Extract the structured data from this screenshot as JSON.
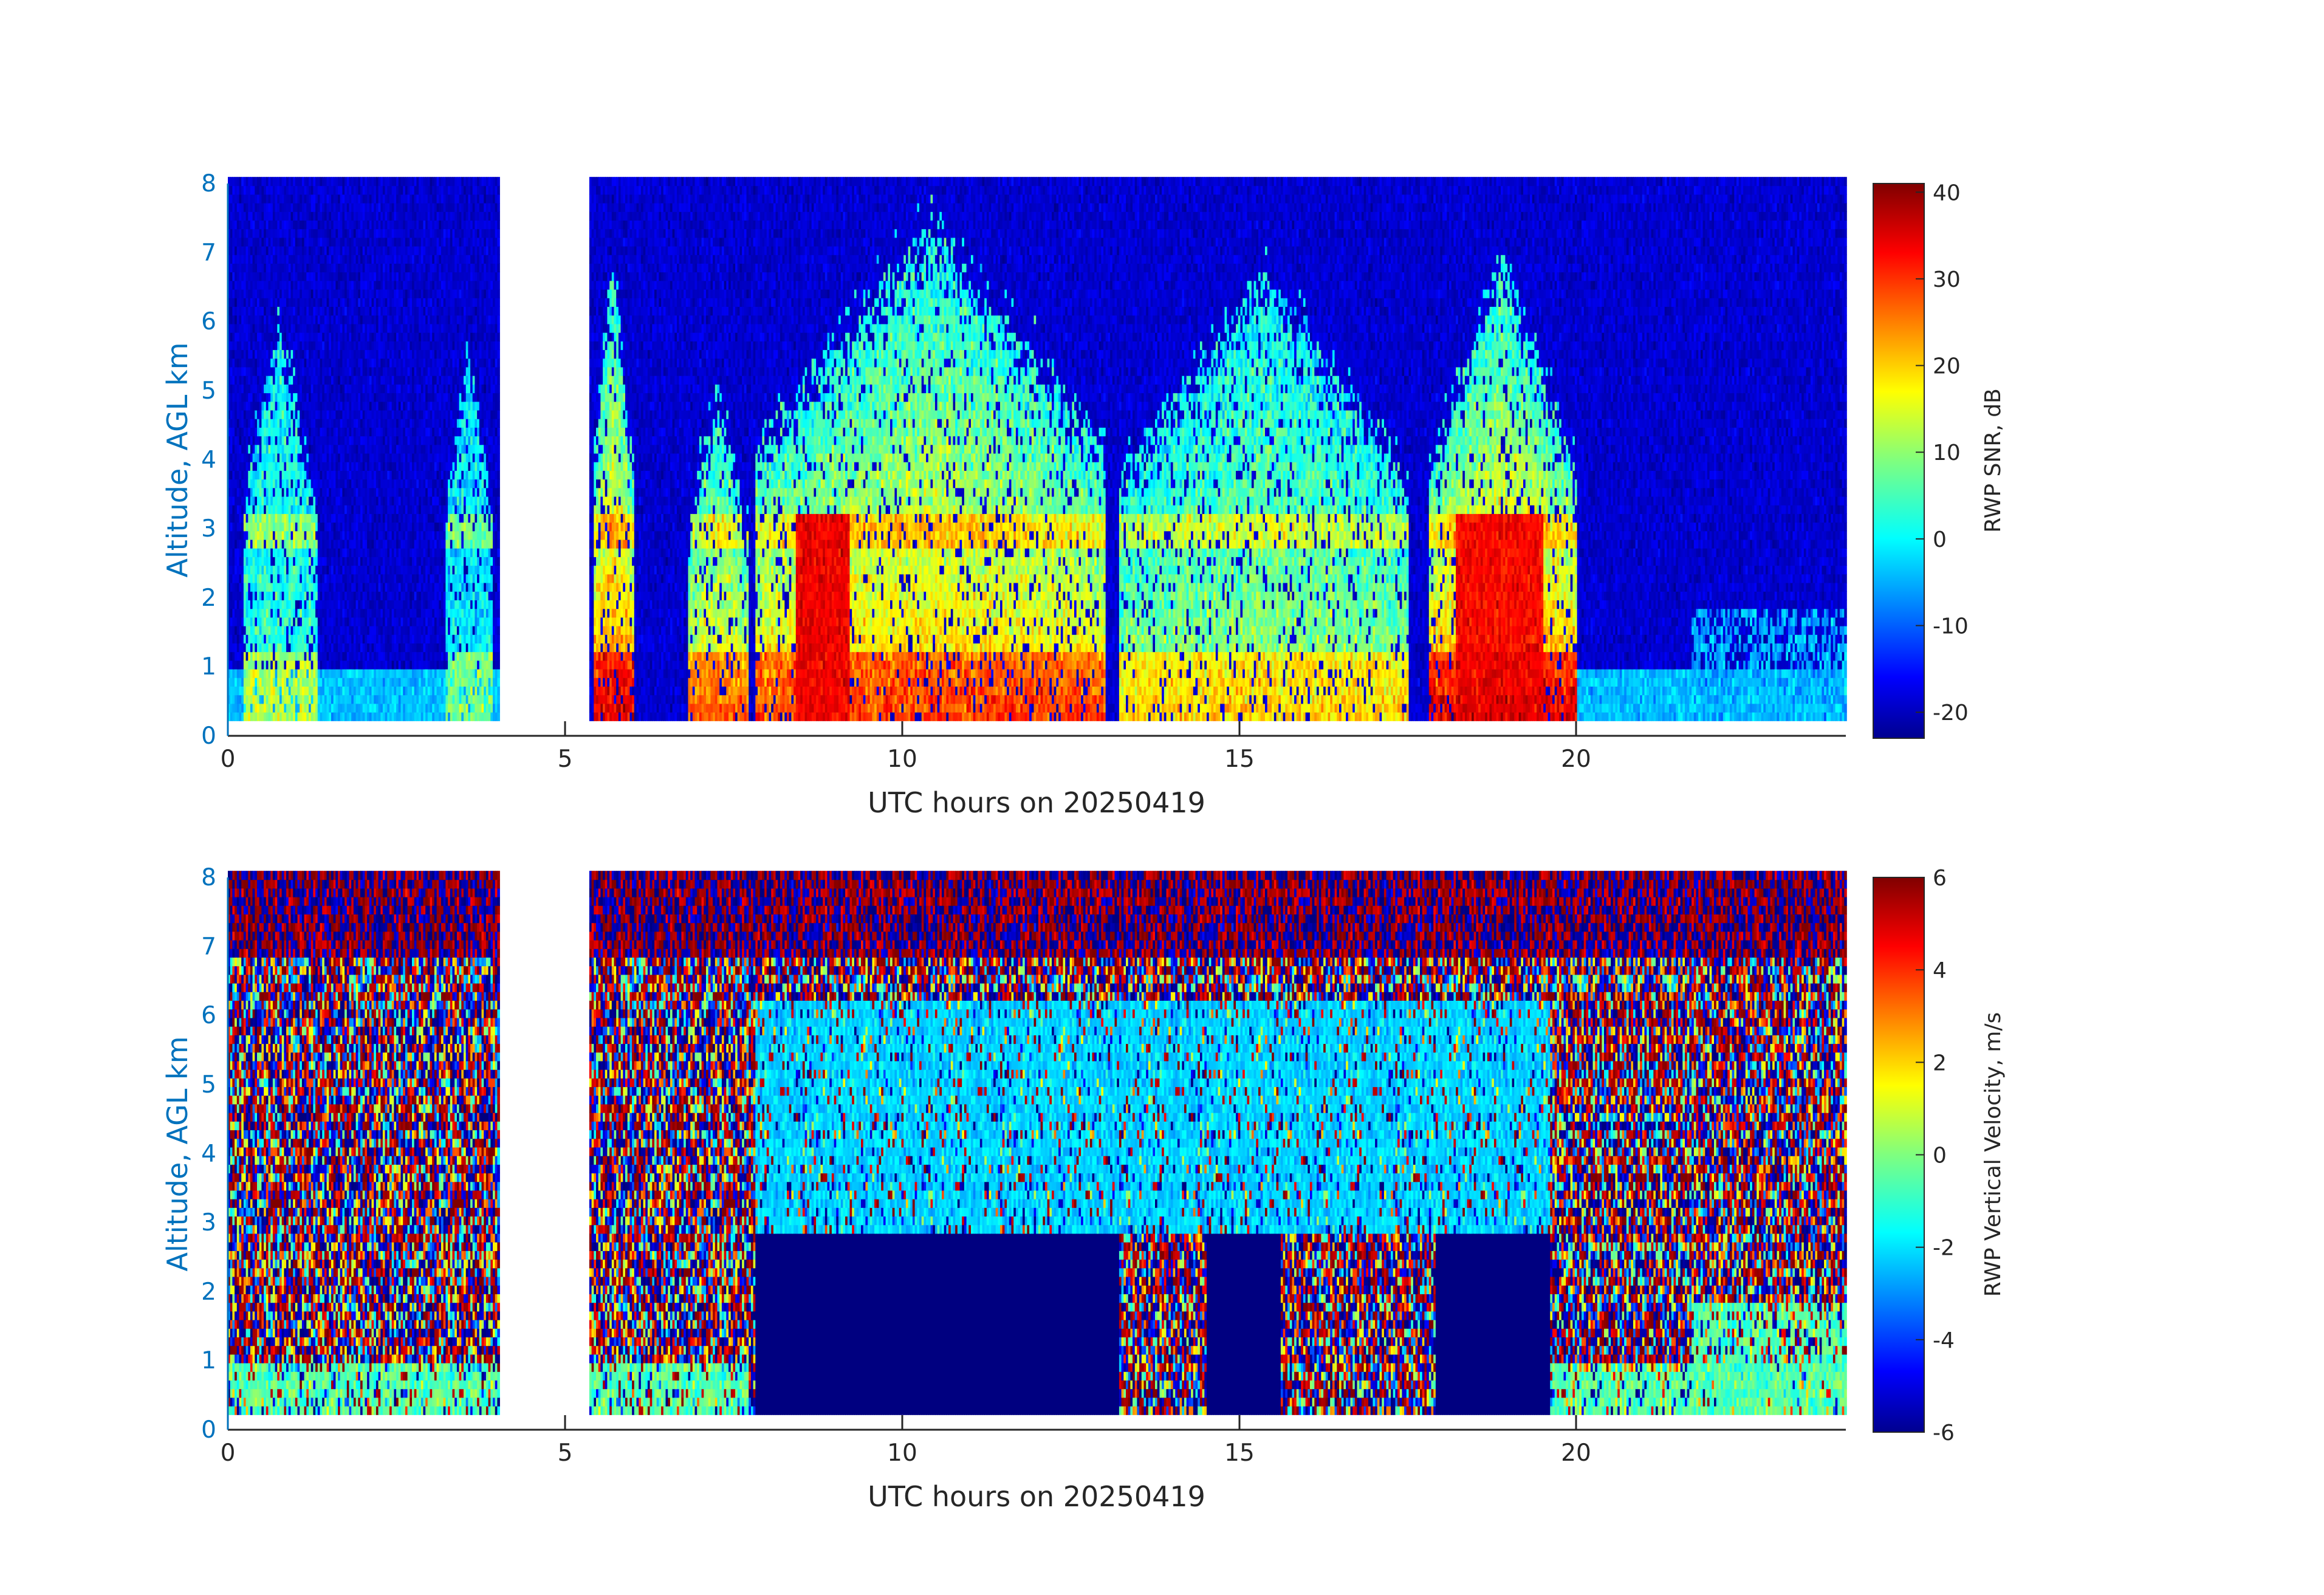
{
  "chart_data": [
    {
      "type": "heatmap",
      "title": "",
      "xlabel": "UTC hours on 20250419",
      "ylabel": "Altitude, AGL km",
      "xlim": [
        0,
        24
      ],
      "ylim": [
        0,
        8
      ],
      "x_ticks": [
        "0",
        "5",
        "10",
        "15",
        "20"
      ],
      "y_ticks": [
        "0",
        "1",
        "2",
        "3",
        "4",
        "5",
        "6",
        "7",
        "8"
      ],
      "data_gap_hours": [
        4.0,
        5.33
      ],
      "data_min_altitude_km": 0.22,
      "colormap": "jet",
      "colorbar": {
        "label": "RWP SNR, dB",
        "range": [
          -23,
          41
        ],
        "ticks": [
          "-20",
          "-10",
          "0",
          "10",
          "20",
          "30",
          "40"
        ]
      },
      "features": [
        {
          "x": [
            0.2,
            1.3
          ],
          "top_km": 5.8,
          "peak": "cyan-yellow"
        },
        {
          "x": [
            3.2,
            3.9
          ],
          "top_km": 5.5,
          "peak": "cyan"
        },
        {
          "x": [
            5.4,
            6.0
          ],
          "top_km": 6.8,
          "peak": "red"
        },
        {
          "x": [
            6.8,
            7.7
          ],
          "top_km": 5.0,
          "peak": "orange"
        },
        {
          "x": [
            7.8,
            13.0
          ],
          "top_km": 7.2,
          "peak": "dark-red"
        },
        {
          "x": [
            13.2,
            17.5
          ],
          "top_km": 6.5,
          "peak": "yellow"
        },
        {
          "x": [
            17.8,
            20.0
          ],
          "top_km": 6.7,
          "peak": "dark-red"
        },
        {
          "x": [
            21.7,
            24.0
          ],
          "top_km": 1.8,
          "peak": "cyan"
        }
      ]
    },
    {
      "type": "heatmap",
      "title": "",
      "xlabel": "UTC hours on 20250419",
      "ylabel": "Altitude, AGL km",
      "xlim": [
        0,
        24
      ],
      "ylim": [
        0,
        8
      ],
      "x_ticks": [
        "0",
        "5",
        "10",
        "15",
        "20"
      ],
      "y_ticks": [
        "0",
        "1",
        "2",
        "3",
        "4",
        "5",
        "6",
        "7",
        "8"
      ],
      "data_gap_hours": [
        4.0,
        5.33
      ],
      "data_min_altitude_km": 0.22,
      "colormap": "jet",
      "colorbar": {
        "label": "RWP Vertical Velocity, m/s",
        "range": [
          -6,
          6
        ],
        "ticks": [
          "-6",
          "-4",
          "-2",
          "0",
          "2",
          "4",
          "6"
        ]
      },
      "features": [
        {
          "x": [
            7.8,
            13.2
          ],
          "alt_km": [
            0.22,
            2.75
          ],
          "value_ms": -6
        },
        {
          "x": [
            14.5,
            17.8
          ],
          "alt_km": [
            0.22,
            2.75
          ],
          "value_ms": -6
        },
        {
          "x": [
            17.8,
            19.6
          ],
          "alt_km": [
            0.22,
            2.75
          ],
          "value_ms": -6
        },
        {
          "x": [
            7.8,
            19.6
          ],
          "alt_km": [
            2.75,
            6.5
          ],
          "value_ms": -2
        }
      ]
    }
  ]
}
